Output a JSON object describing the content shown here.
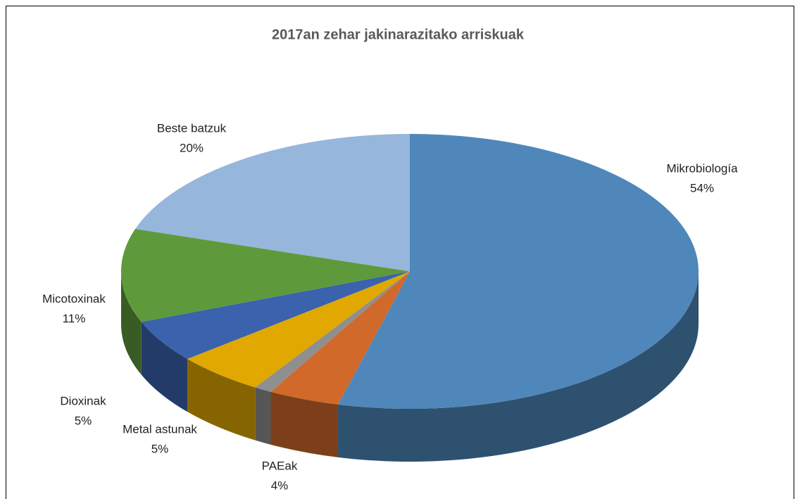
{
  "chart_data": {
    "type": "pie",
    "title": "2017an zehar jakinarazitako  arriskuak",
    "categories": [
      "Mikrobiología",
      "PAEak",
      null,
      "Metal astunak",
      "Dioxinak",
      "Micotoxinak",
      "Beste batzuk"
    ],
    "values": [
      54,
      4,
      1,
      5,
      5,
      11,
      20
    ],
    "value_labels": [
      "54%",
      "4%",
      null,
      "5%",
      "5%",
      "11%",
      "20%"
    ],
    "colors": [
      "#4f87ba",
      "#d0692a",
      "#8f8f8f",
      "#e0a800",
      "#3a62ad",
      "#5e9a3c",
      "#97b6dc"
    ]
  }
}
